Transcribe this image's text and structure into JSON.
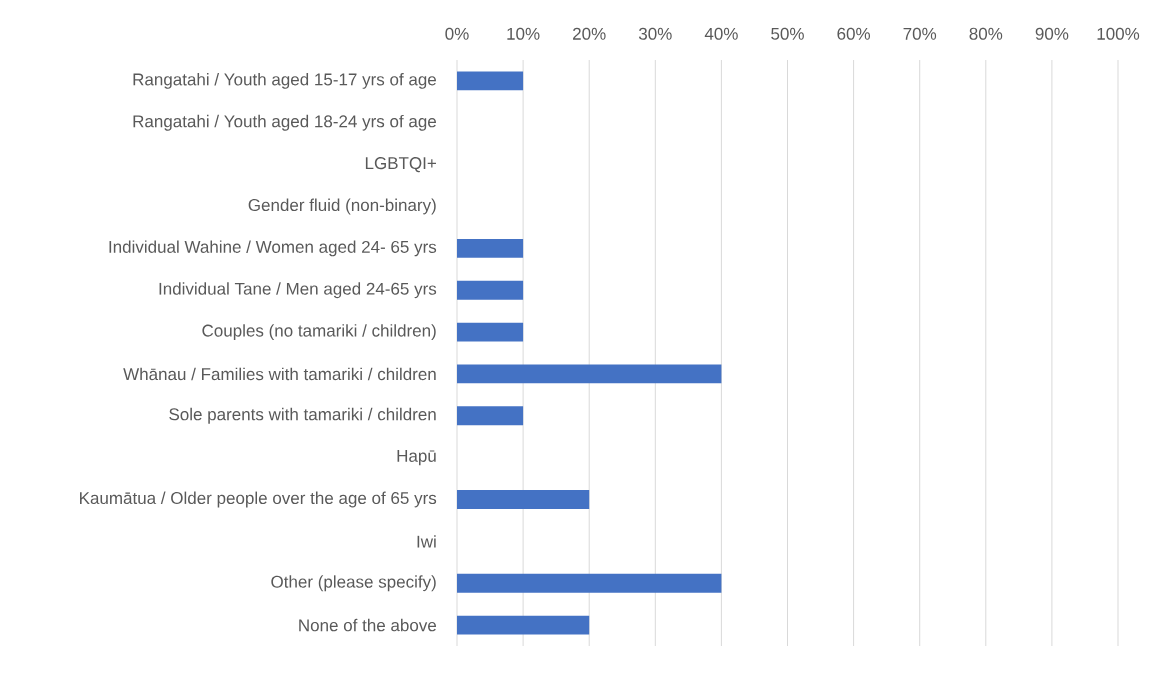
{
  "chart_data": {
    "type": "bar",
    "orientation": "horizontal",
    "categories": [
      "Rangatahi / Youth aged 15-17 yrs of age",
      "Rangatahi / Youth aged 18-24 yrs of age",
      "LGBTQI+",
      "Gender fluid (non-binary)",
      "Individual Wahine / Women aged 24- 65 yrs",
      "Individual Tane / Men aged 24-65 yrs",
      "Couples (no tamariki / children)",
      "Whānau / Families with tamariki / children",
      "Sole parents with tamariki / children",
      "Hapū",
      "Kaumātua / Older people over the age of 65 yrs",
      "Iwi",
      "Other (please specify)",
      "None of the above"
    ],
    "values": [
      10,
      0,
      0,
      0,
      10,
      10,
      10,
      40,
      10,
      0,
      20,
      0,
      40,
      20
    ],
    "color": "#4472c4",
    "xlim": [
      0,
      100
    ],
    "xticks": [
      {
        "value": 0,
        "label": "0%"
      },
      {
        "value": 10,
        "label": "10%"
      },
      {
        "value": 20,
        "label": "20%"
      },
      {
        "value": 30,
        "label": "30%"
      },
      {
        "value": 40,
        "label": "40%"
      },
      {
        "value": 50,
        "label": "50%"
      },
      {
        "value": 60,
        "label": "60%"
      },
      {
        "value": 70,
        "label": "70%"
      },
      {
        "value": 80,
        "label": "80%"
      },
      {
        "value": 90,
        "label": "90%"
      },
      {
        "value": 100,
        "label": "100%"
      }
    ],
    "grid": "x"
  }
}
